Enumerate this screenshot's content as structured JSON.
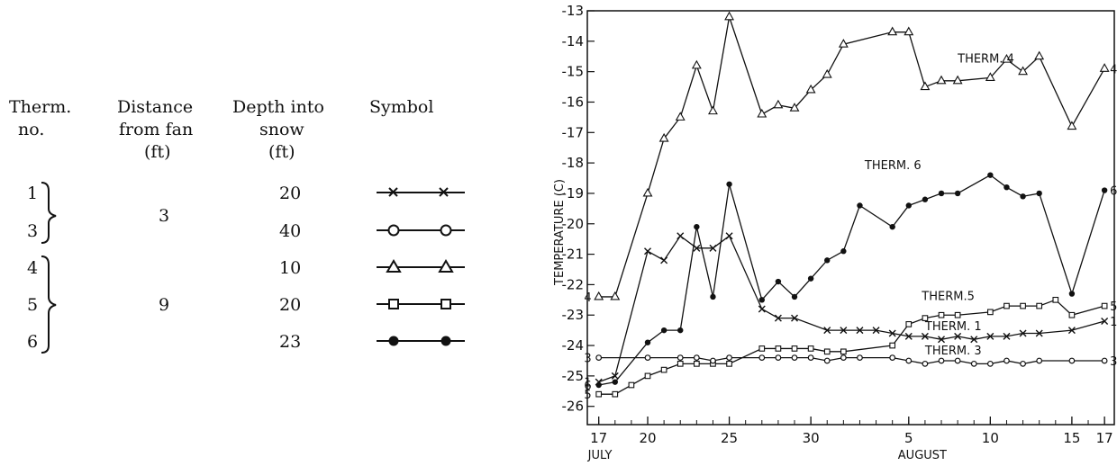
{
  "legend_table": {
    "headers": [
      {
        "line1": "Therm.",
        "line2": "no.",
        "line3": ""
      },
      {
        "line1": "Distance",
        "line2": "from fan",
        "line3": "(ft)"
      },
      {
        "line1": "Depth into",
        "line2": "snow",
        "line3": "(ft)"
      },
      {
        "line1": "Symbol",
        "line2": "",
        "line3": ""
      }
    ],
    "rows": [
      {
        "therm": "1",
        "depth": "20",
        "marker": "x"
      },
      {
        "therm": "3",
        "depth": "40",
        "marker": "circle-open"
      },
      {
        "therm": "4",
        "depth": "10",
        "marker": "triangle-open"
      },
      {
        "therm": "5",
        "depth": "20",
        "marker": "square-open"
      },
      {
        "therm": "6",
        "depth": "23",
        "marker": "circle-filled"
      }
    ],
    "group_distances": [
      {
        "value": "3",
        "therms": [
          "1",
          "3"
        ]
      },
      {
        "value": "9",
        "therms": [
          "4",
          "5",
          "6"
        ]
      }
    ]
  },
  "chart_data": {
    "type": "line",
    "ylabel": "TEMPERATURE (C)",
    "ylim": [
      -26.6,
      -13
    ],
    "y_ticks": [
      "-13",
      "-14",
      "-15",
      "-16",
      "-17",
      "-18",
      "-19",
      "-20",
      "-21",
      "-22",
      "-23",
      "-24",
      "-25",
      "-26"
    ],
    "y_tick_values": [
      -13,
      -14,
      -15,
      -16,
      -17,
      -18,
      -19,
      -20,
      -21,
      -22,
      -23,
      -24,
      -25,
      -26
    ],
    "x_day_range": [
      16.3,
      48.6
    ],
    "x_ticks": [
      {
        "day": 17,
        "label": "17"
      },
      {
        "day": 20,
        "label": "20"
      },
      {
        "day": 25,
        "label": "25"
      },
      {
        "day": 30,
        "label": "30"
      },
      {
        "day": 36,
        "label": "5"
      },
      {
        "day": 41,
        "label": "10"
      },
      {
        "day": 46,
        "label": "15"
      },
      {
        "day": 48,
        "label": "17"
      }
    ],
    "x_month_labels": [
      {
        "day": 17,
        "label": "JULY"
      },
      {
        "day": 36,
        "label": "AUGUST"
      }
    ],
    "series": [
      {
        "name": "THERM. 4",
        "marker": "triangle-open",
        "end_label": "4",
        "start_label": "4",
        "x": [
          17,
          18,
          20,
          21,
          22,
          23,
          24,
          25,
          27,
          28,
          29,
          30,
          31,
          32,
          35,
          36,
          37,
          38,
          39,
          41,
          42,
          43,
          44,
          46,
          48
        ],
        "y": [
          -22.4,
          -22.4,
          -19.0,
          -17.2,
          -16.5,
          -14.8,
          -16.3,
          -13.2,
          -16.4,
          -16.1,
          -16.2,
          -15.6,
          -15.1,
          -14.1,
          -13.7,
          -13.7,
          -15.5,
          -15.3,
          -15.3,
          -15.2,
          -14.6,
          -15.0,
          -14.5,
          -16.8,
          -14.9
        ],
        "annotation": "THERM. 4",
        "annotation_at": [
          39,
          -14.7
        ]
      },
      {
        "name": "THERM. 6",
        "marker": "circle-filled",
        "end_label": "6",
        "start_label": "6",
        "x": [
          17,
          18,
          20,
          21,
          22,
          23,
          24,
          25,
          27,
          28,
          29,
          30,
          31,
          32,
          33,
          35,
          36,
          37,
          38,
          39,
          41,
          42,
          43,
          44,
          46,
          48
        ],
        "y": [
          -25.3,
          -25.2,
          -23.9,
          -23.5,
          -23.5,
          -20.1,
          -22.4,
          -18.7,
          -22.5,
          -21.9,
          -22.4,
          -21.8,
          -21.2,
          -20.9,
          -19.4,
          -20.1,
          -19.4,
          -19.2,
          -19.0,
          -19.0,
          -18.4,
          -18.8,
          -19.1,
          -19.0,
          -22.3,
          -18.9
        ],
        "annotation": "THERM. 6",
        "annotation_at": [
          33.3,
          -18.2
        ]
      },
      {
        "name": "THERM. 5",
        "marker": "square-open",
        "end_label": "5",
        "start_label": "5",
        "x": [
          17,
          18,
          19,
          20,
          21,
          22,
          23,
          24,
          25,
          27,
          28,
          29,
          30,
          31,
          32,
          35,
          36,
          37,
          38,
          39,
          41,
          42,
          43,
          44,
          45,
          46,
          48
        ],
        "y": [
          -25.6,
          -25.6,
          -25.3,
          -25.0,
          -24.8,
          -24.6,
          -24.6,
          -24.6,
          -24.6,
          -24.1,
          -24.1,
          -24.1,
          -24.1,
          -24.2,
          -24.2,
          -24.0,
          -23.3,
          -23.1,
          -23.0,
          -23.0,
          -22.9,
          -22.7,
          -22.7,
          -22.7,
          -22.5,
          -23.0,
          -22.7
        ],
        "annotation": "THERM.5",
        "annotation_at": [
          36.8,
          -22.5
        ]
      },
      {
        "name": "THERM. 1",
        "marker": "x",
        "end_label": "1",
        "start_label": "1",
        "x": [
          17,
          18,
          20,
          21,
          22,
          23,
          24,
          25,
          27,
          28,
          29,
          31,
          32,
          33,
          34,
          35,
          36,
          37,
          38,
          39,
          40,
          41,
          42,
          43,
          44,
          46,
          48
        ],
        "y": [
          -25.2,
          -25.0,
          -20.9,
          -21.2,
          -20.4,
          -20.8,
          -20.8,
          -20.4,
          -22.8,
          -23.1,
          -23.1,
          -23.5,
          -23.5,
          -23.5,
          -23.5,
          -23.6,
          -23.7,
          -23.7,
          -23.8,
          -23.7,
          -23.8,
          -23.7,
          -23.7,
          -23.6,
          -23.6,
          -23.5,
          -23.2
        ],
        "annotation": "THERM. 1",
        "annotation_at": [
          37,
          -23.5
        ]
      },
      {
        "name": "THERM. 3",
        "marker": "circle-open",
        "end_label": "3",
        "start_label": "3",
        "x": [
          17,
          20,
          22,
          23,
          24,
          25,
          27,
          28,
          29,
          30,
          31,
          32,
          33,
          35,
          36,
          37,
          38,
          39,
          40,
          41,
          42,
          43,
          44,
          46,
          48
        ],
        "y": [
          -24.4,
          -24.4,
          -24.4,
          -24.4,
          -24.5,
          -24.4,
          -24.4,
          -24.4,
          -24.4,
          -24.4,
          -24.5,
          -24.4,
          -24.4,
          -24.4,
          -24.5,
          -24.6,
          -24.5,
          -24.5,
          -24.6,
          -24.6,
          -24.5,
          -24.6,
          -24.5,
          -24.5,
          -24.5
        ],
        "annotation": "THERM. 3",
        "annotation_at": [
          37,
          -24.3
        ]
      }
    ]
  }
}
